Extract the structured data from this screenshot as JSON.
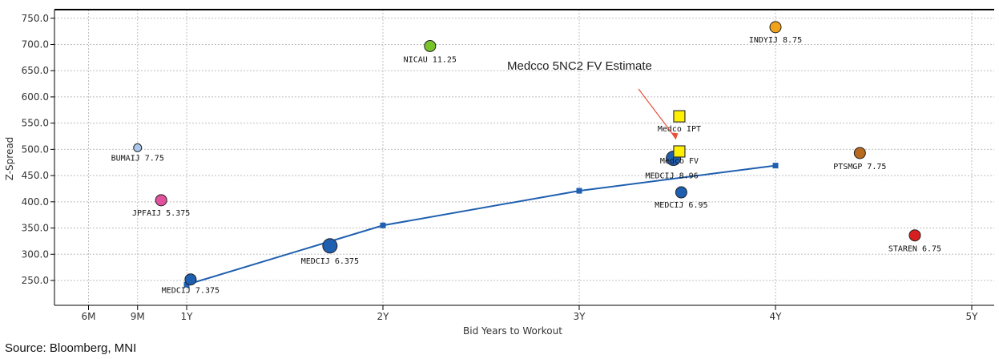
{
  "chart_data": {
    "type": "scatter",
    "title": "",
    "xlabel": "Bid Years to Workout",
    "ylabel": "Z-Spread",
    "xlim": [
      0.2,
      5.2
    ],
    "ylim": [
      200,
      760
    ],
    "grid": true,
    "x_ticks": [
      {
        "label": "6M",
        "value": 0.5
      },
      {
        "label": "9M",
        "value": 0.75
      },
      {
        "label": "1Y",
        "value": 1.0
      },
      {
        "label": "2Y",
        "value": 2.0
      },
      {
        "label": "3Y",
        "value": 3.0
      },
      {
        "label": "4Y",
        "value": 4.0
      },
      {
        "label": "5Y",
        "value": 5.0
      }
    ],
    "y_ticks": [
      {
        "label": "250.0",
        "value": 250
      },
      {
        "label": "300.0",
        "value": 300
      },
      {
        "label": "350.0",
        "value": 350
      },
      {
        "label": "400.0",
        "value": 400
      },
      {
        "label": "450.0",
        "value": 450
      },
      {
        "label": "500.0",
        "value": 500
      },
      {
        "label": "550.0",
        "value": 550
      },
      {
        "label": "600.0",
        "value": 600
      },
      {
        "label": "650.0",
        "value": 650
      },
      {
        "label": "700.0",
        "value": 700
      },
      {
        "label": "750.0",
        "value": 750
      }
    ],
    "curve": {
      "name": "MEDCIJ curve",
      "color": "#1f5fb0",
      "x": [
        1.0,
        2.0,
        3.0,
        4.0
      ],
      "y": [
        242,
        355,
        421,
        469
      ]
    },
    "points": [
      {
        "label": "BUMAIJ 7.75",
        "x": 0.75,
        "y": 503,
        "color": "#a9c8ec",
        "size": "small",
        "shape": "circle"
      },
      {
        "label": "JPFAIJ 5.375",
        "x": 0.87,
        "y": 403,
        "color": "#e0529c",
        "size": "medium",
        "shape": "circle"
      },
      {
        "label": "MEDCIJ 7.375",
        "x": 1.02,
        "y": 252,
        "color": "#1f5fb0",
        "size": "medium",
        "shape": "circle"
      },
      {
        "label": "MEDCIJ 6.375",
        "x": 1.73,
        "y": 316,
        "color": "#1f5fb0",
        "size": "large",
        "shape": "circle"
      },
      {
        "label": "NICAU 11.25",
        "x": 2.24,
        "y": 697,
        "color": "#77c42a",
        "size": "medium",
        "shape": "circle"
      },
      {
        "label": "INDYIJ 8.75",
        "x": 4.0,
        "y": 733,
        "color": "#f0a21a",
        "size": "medium",
        "shape": "circle"
      },
      {
        "label": "MEDCIJ 8.96",
        "x": 3.48,
        "y": 483,
        "color": "#1f5fb0",
        "size": "large",
        "shape": "circle"
      },
      {
        "label": "MEDCIJ 6.95",
        "x": 3.52,
        "y": 418,
        "color": "#1f5fb0",
        "size": "medium",
        "shape": "circle"
      },
      {
        "label": "PTSMGP 7.75",
        "x": 4.43,
        "y": 493,
        "color": "#b86a1e",
        "size": "medium",
        "shape": "circle"
      },
      {
        "label": "STAREN 6.75",
        "x": 4.71,
        "y": 336,
        "color": "#d81f1f",
        "size": "medium",
        "shape": "circle"
      },
      {
        "label": "Medco IPT",
        "x": 3.51,
        "y": 563,
        "color": "#ffef00",
        "size": "medium",
        "shape": "square"
      },
      {
        "label": "Medco FV",
        "x": 3.51,
        "y": 496,
        "color": "#ffef00",
        "size": "medium",
        "shape": "square"
      }
    ],
    "annotations": [
      {
        "text": "Medcco 5NC2 FV Estimate",
        "x": 3.01,
        "y": 650,
        "arrow_to": {
          "x": 3.5,
          "y": 500
        }
      }
    ]
  },
  "source": "Source: Bloomberg, MNI"
}
